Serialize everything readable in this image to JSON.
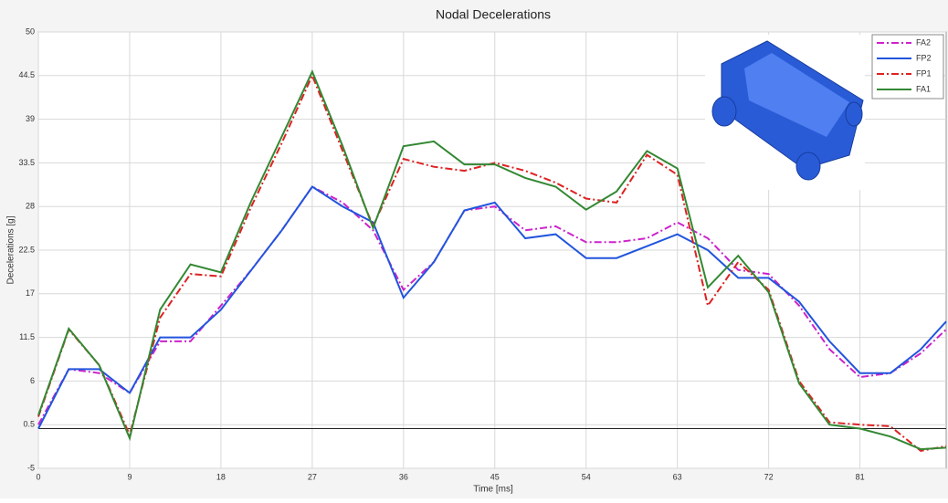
{
  "chart_data": {
    "type": "line",
    "title": "Nodal Decelerations",
    "x_label": "Time [ms]",
    "y_label": "Decelerations [g]",
    "x": [
      0,
      3,
      6,
      9,
      12,
      15,
      18,
      21,
      24,
      27,
      30,
      33,
      36,
      39,
      42,
      45,
      48,
      51,
      54,
      57,
      60,
      63,
      66,
      69,
      72,
      75,
      78,
      81,
      84,
      87,
      89.5
    ],
    "series": [
      {
        "name": "FA2",
        "color": "#cc22cc",
        "style": "dashdot",
        "values": [
          0.5,
          7.5,
          7,
          4.5,
          11,
          11,
          15.5,
          20,
          25,
          30.5,
          28.5,
          25,
          17.5,
          21,
          27.5,
          28,
          25,
          25.5,
          23.5,
          23.5,
          24,
          26,
          24,
          20,
          19.5,
          15.5,
          10,
          6.5,
          7,
          9.5,
          12.5
        ]
      },
      {
        "name": "FP2",
        "color": "#2255dd",
        "style": "solid",
        "values": [
          0,
          7.5,
          7.5,
          4.5,
          11.5,
          11.5,
          15,
          20,
          25,
          30.5,
          28,
          26,
          16.5,
          21,
          27.5,
          28.5,
          24,
          24.5,
          21.5,
          21.5,
          23,
          24.5,
          22.5,
          19,
          19,
          16,
          11,
          7,
          7,
          10,
          13.5
        ]
      },
      {
        "name": "FP1",
        "color": "#dd2222",
        "style": "dashdot",
        "values": [
          1.5,
          12.5,
          8,
          -0.8,
          14,
          19.5,
          19.2,
          28,
          36,
          44.5,
          35,
          25.5,
          34,
          33,
          32.5,
          33.5,
          32.5,
          31,
          29,
          28.5,
          34.5,
          32,
          15.5,
          21,
          17.5,
          6,
          0.8,
          0.5,
          0.3,
          -2.8,
          -2.2
        ]
      },
      {
        "name": "FA1",
        "color": "#338833",
        "style": "solid",
        "values": [
          1.7,
          12.6,
          8,
          -1.2,
          15,
          20.7,
          19.7,
          28.7,
          36.8,
          45,
          35.6,
          25.3,
          35.6,
          36.2,
          33.3,
          33.3,
          31.6,
          30.5,
          27.6,
          29.9,
          35,
          32.8,
          17.8,
          21.8,
          17.2,
          5.7,
          0.5,
          0,
          -1,
          -2.6,
          -2.4
        ]
      }
    ],
    "xlim": [
      0,
      89.5
    ],
    "xticks": [
      0,
      9,
      18,
      27,
      36,
      45,
      54,
      63,
      72,
      81
    ],
    "ylim": [
      -5,
      50
    ],
    "yticks": [
      -5,
      0.5,
      6,
      11.5,
      17,
      22.5,
      28,
      33.5,
      39,
      44.5,
      50
    ],
    "grid": true,
    "legend": "upper right"
  }
}
